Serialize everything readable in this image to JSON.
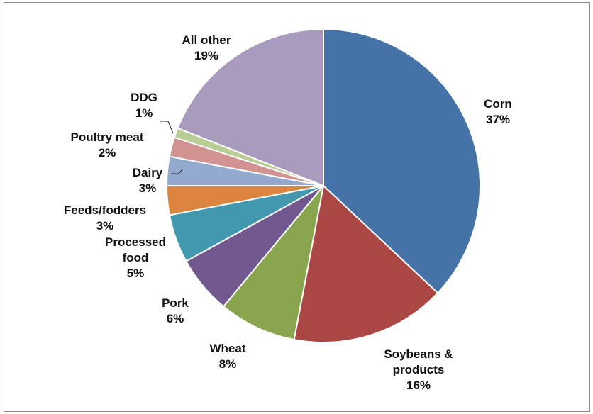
{
  "chart_data": {
    "type": "pie",
    "title": "",
    "slices": [
      {
        "name": "Corn",
        "label_lines": [
          "Corn",
          "37%"
        ],
        "value": 37,
        "color": "#4572a7"
      },
      {
        "name": "Soybeans & products",
        "label_lines": [
          "Soybeans &",
          "products",
          "16%"
        ],
        "value": 16,
        "color": "#aa4643"
      },
      {
        "name": "Wheat",
        "label_lines": [
          "Wheat",
          "8%"
        ],
        "value": 8,
        "color": "#89a54e"
      },
      {
        "name": "Pork",
        "label_lines": [
          "Pork",
          "6%"
        ],
        "value": 6,
        "color": "#71588f"
      },
      {
        "name": "Processed food",
        "label_lines": [
          "Processed",
          "food",
          "5%"
        ],
        "value": 5,
        "color": "#4198af"
      },
      {
        "name": "Feeds/fodders",
        "label_lines": [
          "Feeds/fodders",
          "3%"
        ],
        "value": 3,
        "color": "#db843d"
      },
      {
        "name": "Dairy",
        "label_lines": [
          "Dairy",
          "3%"
        ],
        "value": 3,
        "color": "#93a9cf"
      },
      {
        "name": "Poultry meat",
        "label_lines": [
          "Poultry meat",
          "2%"
        ],
        "value": 2,
        "color": "#d19392"
      },
      {
        "name": "DDG",
        "label_lines": [
          "DDG",
          "1%"
        ],
        "value": 1,
        "color": "#b9cd96"
      },
      {
        "name": "All other",
        "label_lines": [
          "All other",
          "19%"
        ],
        "value": 19,
        "color": "#a99bbd"
      }
    ],
    "start_angle": "12 o'clock",
    "direction": "clockwise",
    "legend": "none (data labels)"
  }
}
